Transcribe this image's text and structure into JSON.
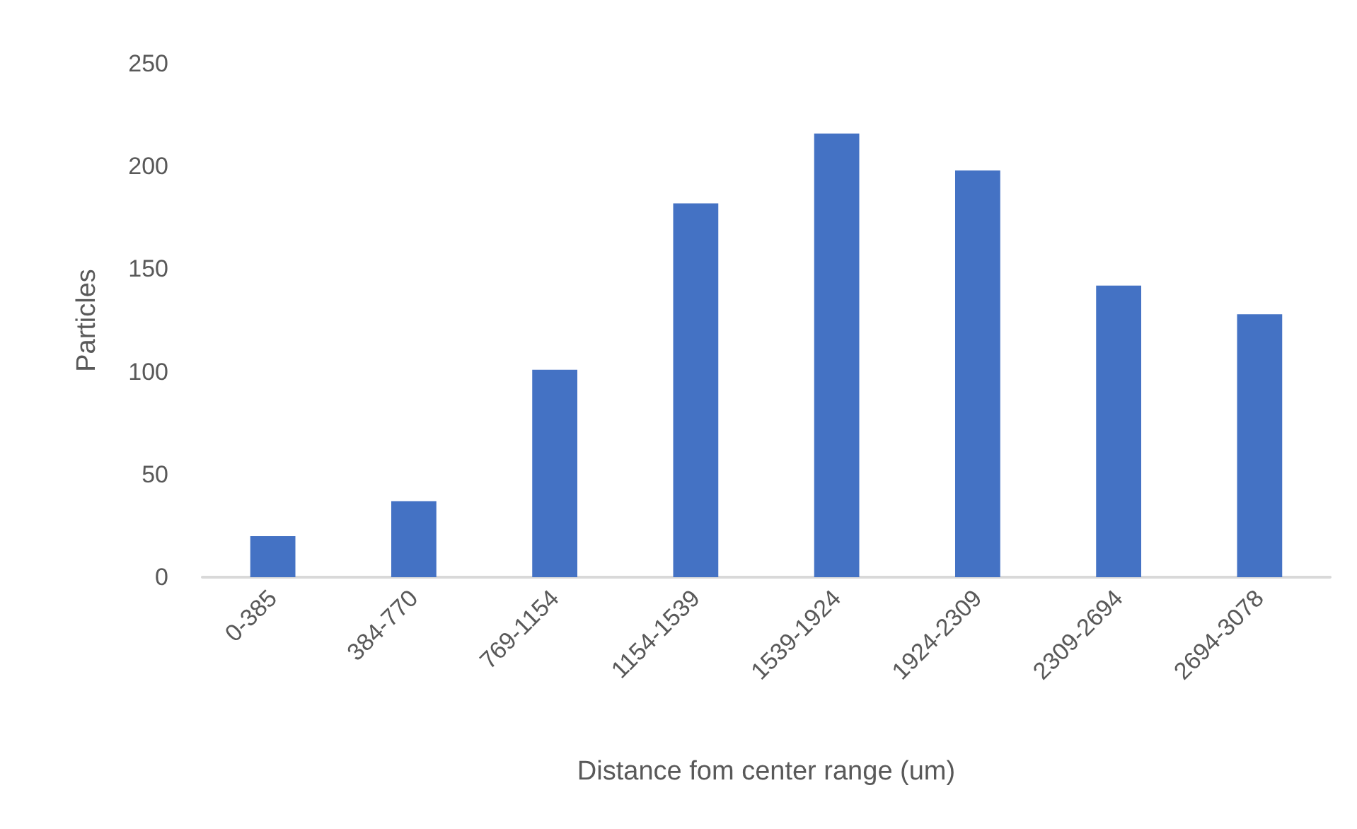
{
  "chart_data": {
    "type": "bar",
    "xlabel": "Distance fom center range (um)",
    "ylabel": "Particles",
    "categories": [
      "0-385",
      "384-770",
      "769-1154",
      "1154-1539",
      "1539-1924",
      "1924-2309",
      "2309-2694",
      "2694-3078"
    ],
    "values": [
      20,
      37,
      101,
      182,
      216,
      198,
      142,
      128
    ],
    "color": "#4472c4",
    "ylim": [
      0,
      250
    ],
    "yticks": [
      0,
      50,
      100,
      150,
      200,
      250
    ],
    "grid": false
  }
}
